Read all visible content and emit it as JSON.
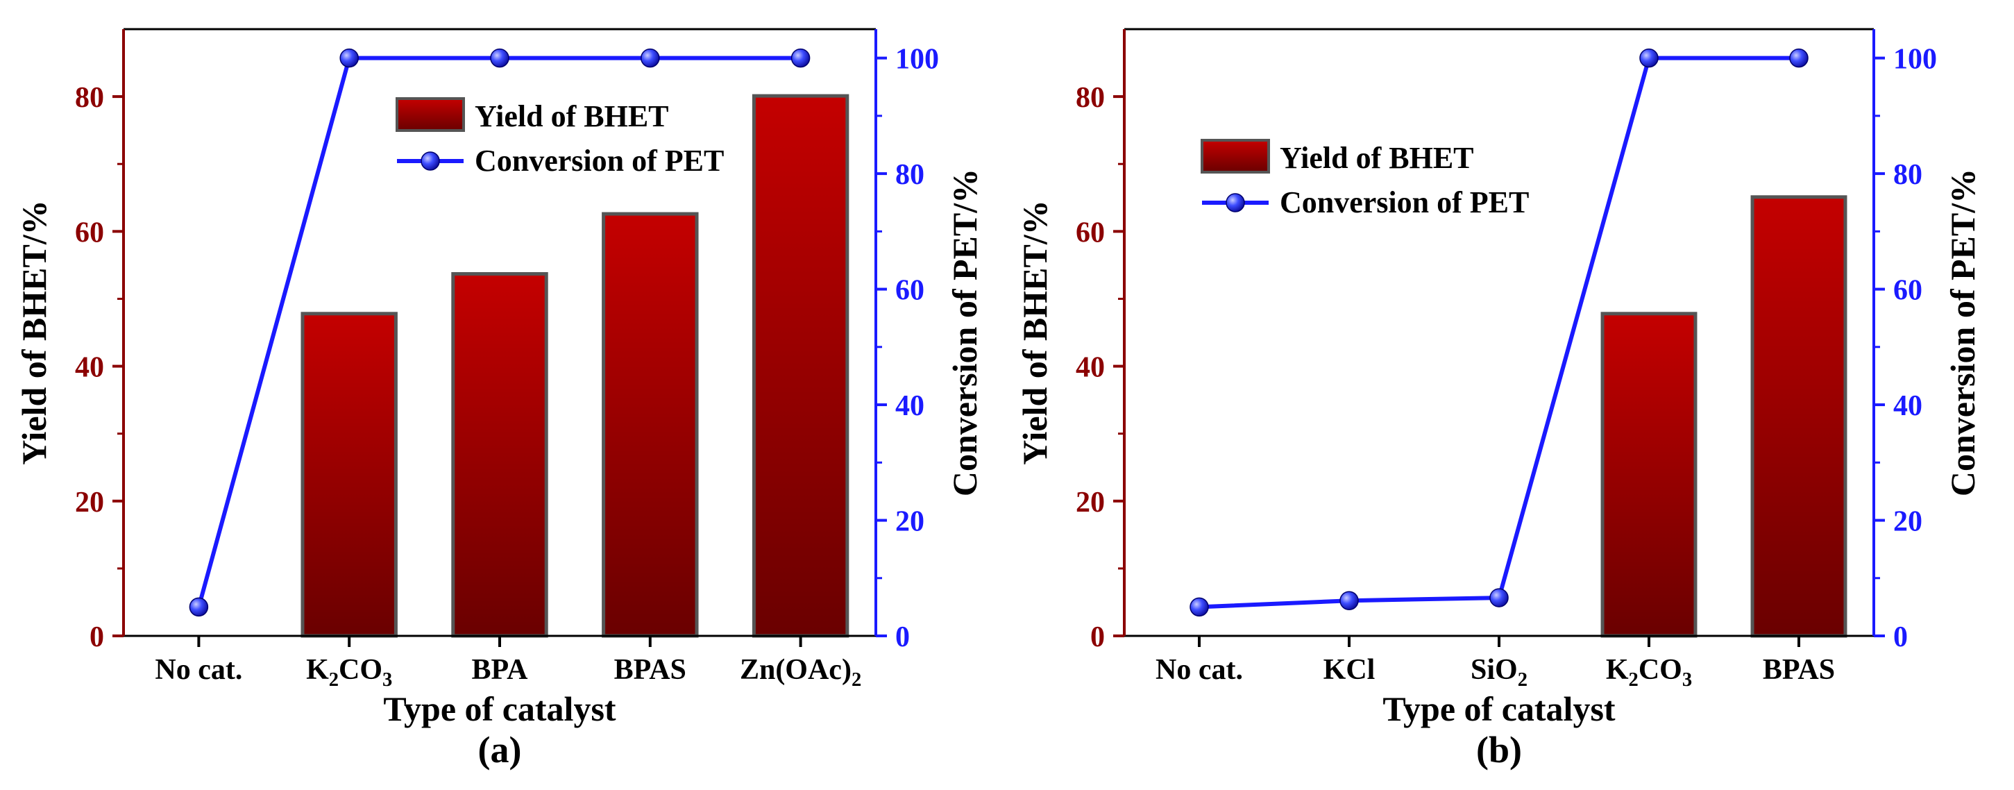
{
  "colors": {
    "bar_top": "#c40000",
    "bar_bottom": "#6a0000",
    "bar_edge": "#555555",
    "left_axis": "#8b0000",
    "right_axis": "#1a1aff",
    "line": "#1a1aff",
    "marker_fill": "#3d4dff",
    "frame": "#000000"
  },
  "chart_data": [
    {
      "type": "bar",
      "panel_label": "(a)",
      "xlabel": "Type of catalyst",
      "ylabel": "Yield of BHET/%",
      "y2label": "Conversion of PET/%",
      "categories": [
        {
          "text": "No cat.",
          "sub": "",
          "tail": ""
        },
        {
          "text": "K",
          "sub": "2",
          "tail": "CO",
          "sub2": "3"
        },
        {
          "text": "BPA",
          "sub": "",
          "tail": ""
        },
        {
          "text": "BPAS",
          "sub": "",
          "tail": ""
        },
        {
          "text": "Zn(OAc)",
          "sub": "2",
          "tail": ""
        }
      ],
      "ylim": [
        0,
        90
      ],
      "yticks": [
        0,
        20,
        40,
        60,
        80
      ],
      "y2lim": [
        0,
        105
      ],
      "y2ticks": [
        0,
        20,
        40,
        60,
        80,
        100
      ],
      "series": [
        {
          "name": "Yield of BHET",
          "axis": "left",
          "kind": "bar",
          "values": [
            null,
            47.8,
            53.7,
            62.6,
            80.1
          ]
        },
        {
          "name": "Conversion of PET",
          "axis": "right",
          "kind": "line",
          "values": [
            5.0,
            100,
            100,
            100,
            100
          ]
        }
      ],
      "legend": {
        "position": "top-center",
        "items": [
          "Yield of BHET",
          "Conversion of PET"
        ]
      }
    },
    {
      "type": "bar",
      "panel_label": "(b)",
      "xlabel": "Type of catalyst",
      "ylabel": "Yield of BHET/%",
      "y2label": "Conversion of PET/%",
      "categories": [
        {
          "text": "No cat.",
          "sub": "",
          "tail": ""
        },
        {
          "text": "KCl",
          "sub": "",
          "tail": ""
        },
        {
          "text": "SiO",
          "sub": "2",
          "tail": ""
        },
        {
          "text": "K",
          "sub": "2",
          "tail": "CO",
          "sub2": "3"
        },
        {
          "text": "BPAS",
          "sub": "",
          "tail": ""
        }
      ],
      "ylim": [
        0,
        90
      ],
      "yticks": [
        0,
        20,
        40,
        60,
        80
      ],
      "y2lim": [
        0,
        105
      ],
      "y2ticks": [
        0,
        20,
        40,
        60,
        80,
        100
      ],
      "series": [
        {
          "name": "Yield of BHET",
          "axis": "left",
          "kind": "bar",
          "values": [
            null,
            null,
            null,
            47.8,
            65.1
          ]
        },
        {
          "name": "Conversion of PET",
          "axis": "right",
          "kind": "line",
          "values": [
            5.0,
            6.1,
            6.6,
            100,
            100
          ]
        }
      ],
      "legend": {
        "position": "top-left",
        "items": [
          "Yield of BHET",
          "Conversion of PET"
        ]
      }
    }
  ]
}
